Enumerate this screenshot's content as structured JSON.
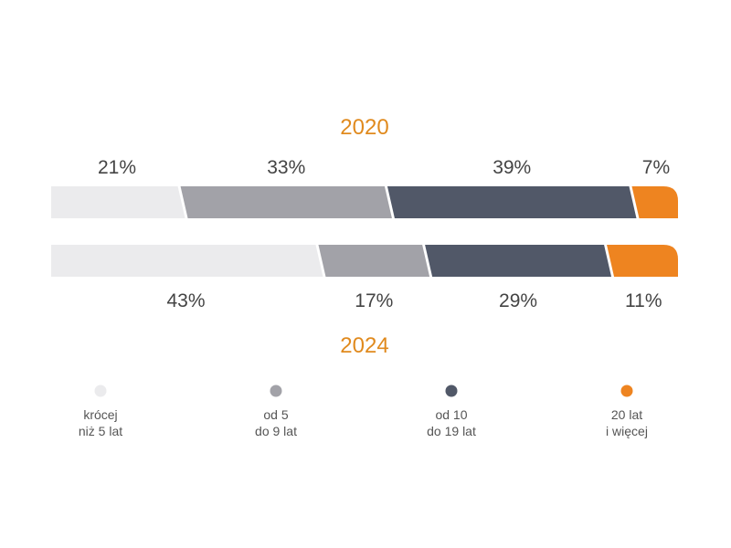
{
  "chart_data": {
    "type": "bar",
    "orientation": "horizontal",
    "stacked": true,
    "categories": [
      "2020",
      "2024"
    ],
    "series": [
      {
        "name": "krócej niż 5 lat",
        "label_lines": [
          "krócej",
          "niż 5 lat"
        ],
        "color": "#ebebed",
        "values": [
          21,
          43
        ]
      },
      {
        "name": "od 5 do 9 lat",
        "label_lines": [
          "od 5",
          "do 9 lat"
        ],
        "color": "#a2a2a8",
        "values": [
          33,
          17
        ]
      },
      {
        "name": "od 10 do 19 lat",
        "label_lines": [
          "od 10",
          "do 19 lat"
        ],
        "color": "#515868",
        "values": [
          39,
          29
        ]
      },
      {
        "name": "20 lat i więcej",
        "label_lines": [
          "20 lat",
          "i więcej"
        ],
        "color": "#ee8420",
        "values": [
          7,
          11
        ]
      }
    ],
    "value_labels": [
      [
        "21%",
        "33%",
        "39%",
        "7%"
      ],
      [
        "43%",
        "17%",
        "29%",
        "11%"
      ]
    ],
    "year_color": "#e08a1e",
    "legend_position": "bottom",
    "grid": false,
    "xlim": [
      0,
      100
    ]
  }
}
